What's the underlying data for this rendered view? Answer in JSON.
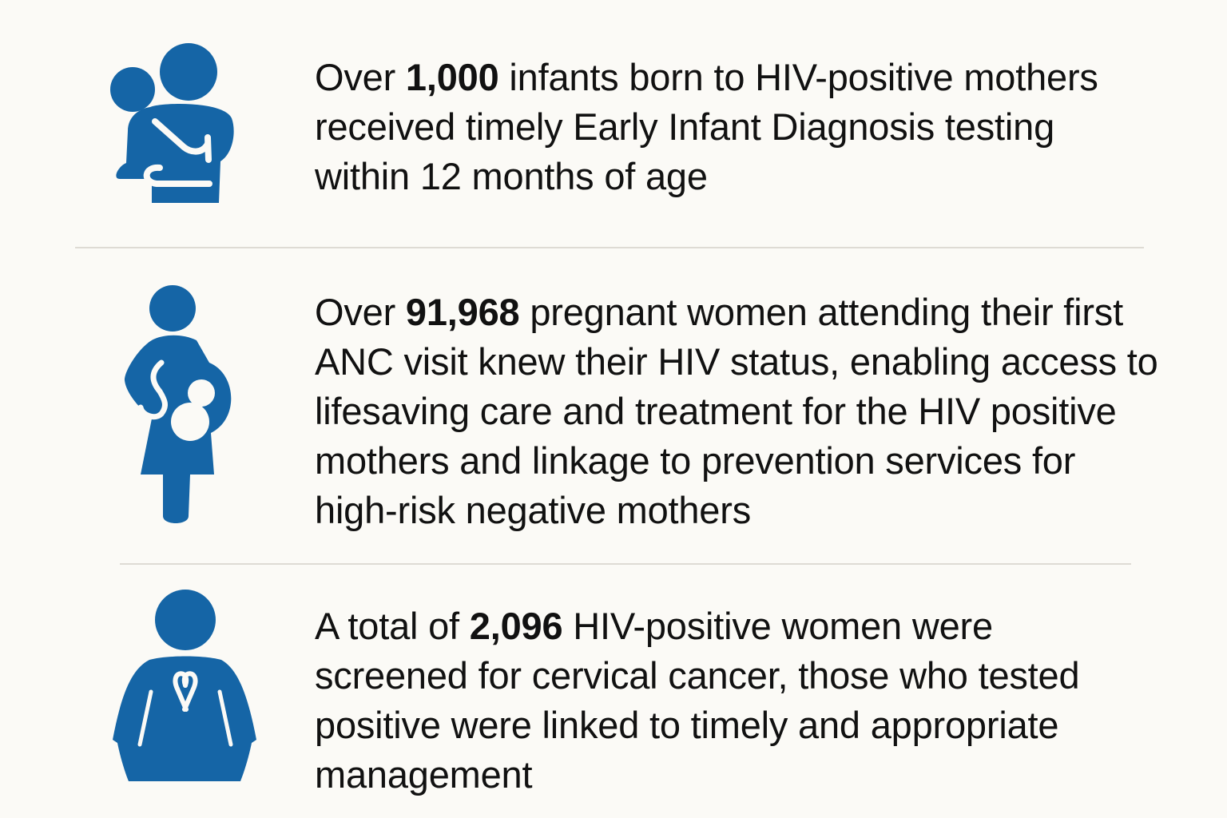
{
  "colors": {
    "icon_blue": "#1565a6",
    "background": "#fbfaf6",
    "text": "#111111",
    "divider": "#dedbd4"
  },
  "stats": [
    {
      "icon": "mother-holding-infant-icon",
      "prefix": "Over ",
      "number": "1,000",
      "suffix": " infants born to HIV-positive mothers received timely Early Infant Diagnosis testing within 12 months of age"
    },
    {
      "icon": "pregnant-woman-icon",
      "prefix": "Over ",
      "number": "91,968",
      "suffix": " pregnant women attending their first ANC visit knew their HIV status, enabling access to lifesaving care and treatment for the HIV positive mothers and linkage to prevention services for high-risk negative mothers"
    },
    {
      "icon": "woman-with-ribbon-icon",
      "prefix": "A total of ",
      "number": "2,096",
      "suffix": " HIV-positive women were screened for cervical cancer, those who tested positive were linked to timely and appropriate management"
    }
  ]
}
